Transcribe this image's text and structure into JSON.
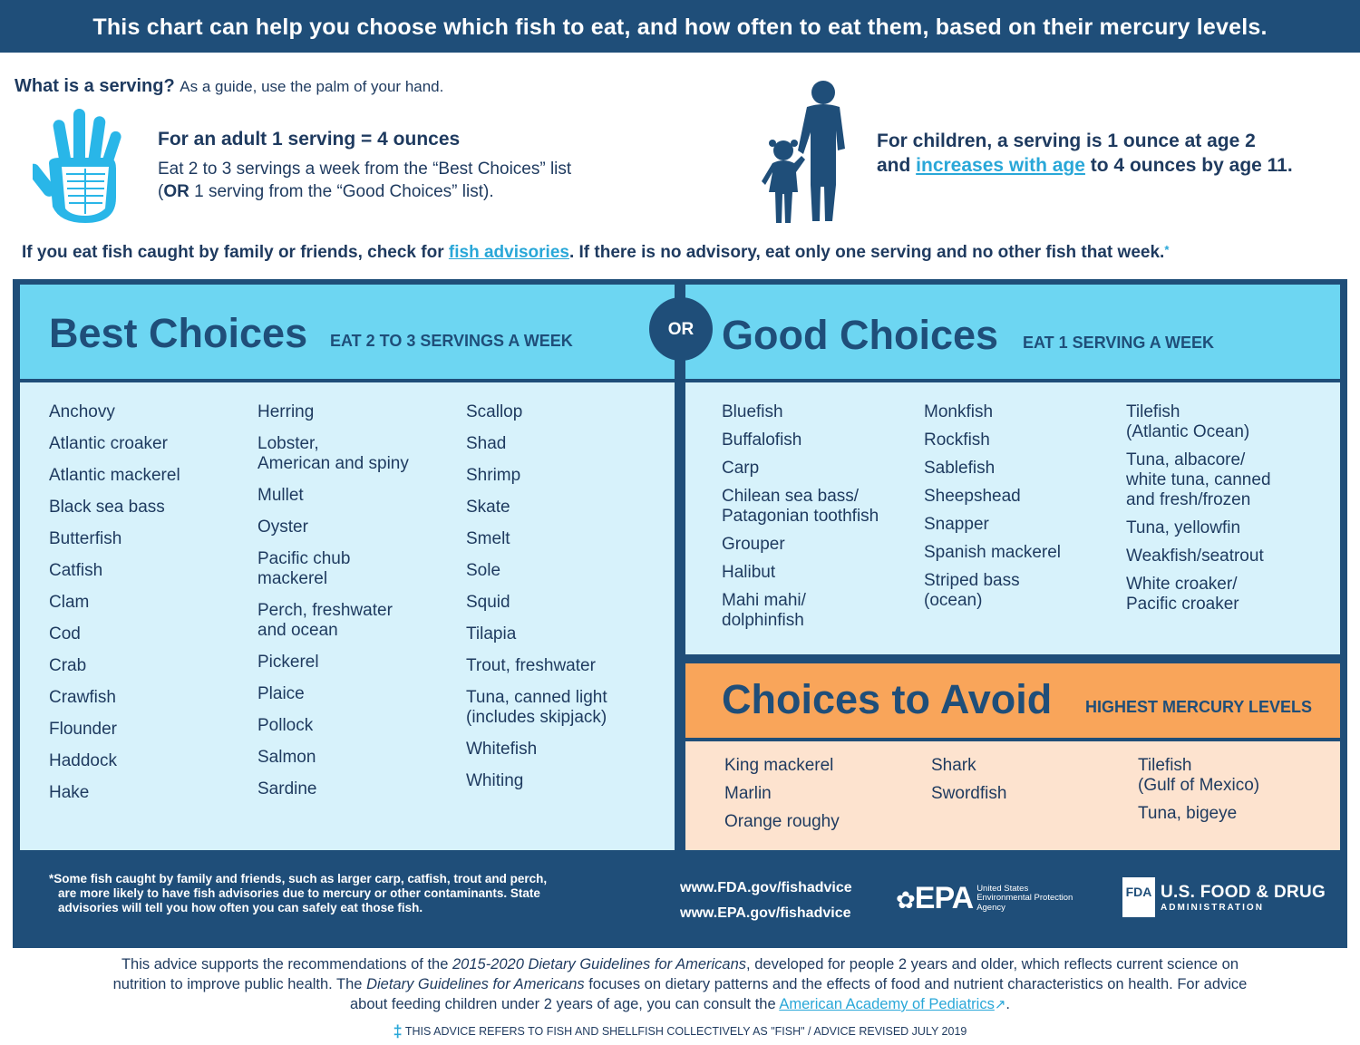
{
  "header": {
    "title": "This chart can help you choose which fish to eat, and how often to eat them, based on their mercury levels."
  },
  "serving": {
    "question": "What is a serving?",
    "guide": "As a guide, use the palm of your hand.",
    "adult_title": "For an adult 1 serving = 4 ounces",
    "adult_line1": "Eat 2 to 3 servings a week from the “Best Choices” list",
    "adult_line2_or": "OR",
    "adult_line2_rest": " 1 serving from the “Good Choices” list).",
    "adult_line2_open": "(",
    "child_line1": "For children, a serving is 1 ounce at age 2",
    "child_and": "and ",
    "child_link": "increases with age",
    "child_end": " to 4 ounces by age 11."
  },
  "advisory": {
    "before": "If you eat fish caught by family or friends, check for ",
    "link": "fish advisories",
    "after": ". If there is no advisory, eat only one serving and no other fish that week.",
    "star": "*"
  },
  "best": {
    "title": "Best Choices",
    "subtitle": "EAT 2 TO 3 SERVINGS A WEEK",
    "col1": [
      "Anchovy",
      "Atlantic croaker",
      "Atlantic mackerel",
      "Black sea bass",
      "Butterfish",
      "Catfish",
      "Clam",
      "Cod",
      "Crab",
      "Crawfish",
      "Flounder",
      "Haddock",
      "Hake"
    ],
    "col2": [
      "Herring",
      "Lobster,\nAmerican and spiny",
      "Mullet",
      "Oyster",
      "Pacific chub\nmackerel",
      "Perch, freshwater\nand ocean",
      "Pickerel",
      "Plaice",
      "Pollock",
      "Salmon",
      "Sardine"
    ],
    "col3": [
      "Scallop",
      "Shad",
      "Shrimp",
      "Skate",
      "Smelt",
      "Sole",
      "Squid",
      "Tilapia",
      "Trout, freshwater",
      "Tuna, canned light\n(includes skipjack)",
      "Whitefish",
      "Whiting"
    ]
  },
  "or_label": "OR",
  "good": {
    "title": "Good Choices",
    "subtitle": "EAT 1 SERVING A WEEK",
    "col1": [
      "Bluefish",
      "Buffalofish",
      "Carp",
      "Chilean sea bass/\nPatagonian toothfish",
      "Grouper",
      "Halibut",
      "Mahi mahi/\ndolphinfish"
    ],
    "col2": [
      "Monkfish",
      "Rockfish",
      "Sablefish",
      "Sheepshead",
      "Snapper",
      "Spanish mackerel",
      "Striped bass\n(ocean)"
    ],
    "col3": [
      "Tilefish\n(Atlantic Ocean)",
      "Tuna, albacore/\nwhite tuna, canned\nand fresh/frozen",
      "Tuna, yellowfin",
      "Weakfish/seatrout",
      "White croaker/\nPacific croaker"
    ]
  },
  "avoid": {
    "title": "Choices to Avoid",
    "subtitle": "HIGHEST MERCURY LEVELS",
    "col1": [
      "King mackerel",
      "Marlin",
      "Orange roughy"
    ],
    "col2": [
      "Shark",
      "Swordfish"
    ],
    "col3": [
      "Tilefish\n(Gulf of Mexico)",
      "Tuna, bigeye"
    ]
  },
  "footer": {
    "footnote_star": "*",
    "footnote_line1": "Some fish caught by family and friends, such as larger carp, catfish, trout and perch,",
    "footnote_line2": "are more likely to have fish advisories due to mercury or other contaminants. State",
    "footnote_line3": "advisories will tell you how often you can safely eat those fish.",
    "url_fda": "www.FDA.gov/fishadvice",
    "url_epa": "www.EPA.gov/fishadvice",
    "epa_mark": "EPA",
    "epa_line1": "United States",
    "epa_line2": "Environmental Protection",
    "epa_line3": "Agency",
    "fda_box": "FDA",
    "fda_name": "U.S. FOOD & DRUG",
    "fda_sub": "ADMINISTRATION"
  },
  "bottom": {
    "l1a": "This advice supports the recommendations of the ",
    "l1b": "2015-2020 Dietary Guidelines for Americans",
    "l1c": ", developed for people 2 years and older, which reflects current science on",
    "l2a": "nutrition to improve public health. The ",
    "l2b": "Dietary Guidelines for Americans",
    "l2c": " focuses on dietary patterns and the effects of food and nutrient characteristics on health. For advice",
    "l3a": "about feeding children under 2 years of age, you can consult the ",
    "l3link": "American Academy of Pediatrics",
    "l3end": ".",
    "dagger": "‡",
    "note": "THIS ADVICE REFERS TO FISH AND SHELLFISH COLLECTIVELY AS \"FISH\" / ADVICE REVISED JULY 2019"
  },
  "colors": {
    "navy": "#1f4e79",
    "light_blue": "#6dd6f2",
    "pale_blue": "#d7f2fb",
    "orange": "#f9a55a",
    "peach": "#fde3cf",
    "link": "#29a7d8"
  }
}
